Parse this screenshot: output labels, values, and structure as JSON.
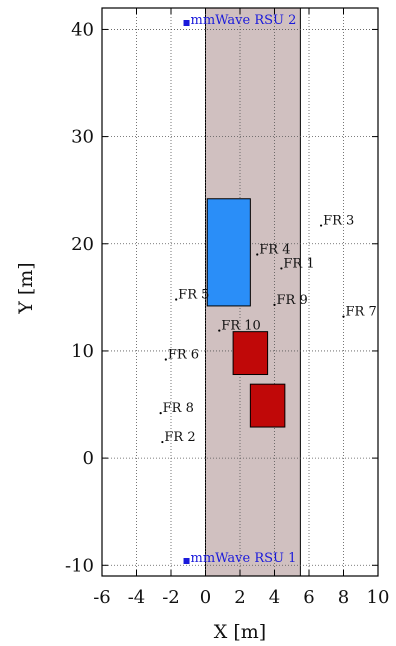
{
  "chart_data": {
    "type": "scatter",
    "title": "",
    "xlabel": "X [m]",
    "ylabel": "Y [m]",
    "xlim": [
      -6,
      10
    ],
    "ylim": [
      -11,
      42
    ],
    "xticks": [
      -6,
      -4,
      -2,
      0,
      2,
      4,
      6,
      8,
      10
    ],
    "xtick_labels": [
      "-6",
      "-4",
      "-2",
      "0",
      "2",
      "4",
      "6",
      "8",
      "10"
    ],
    "yticks": [
      -10,
      0,
      10,
      20,
      30,
      40
    ],
    "ytick_labels": [
      "-10",
      "0",
      "10",
      "20",
      "30",
      "40"
    ],
    "grid": true,
    "road": {
      "x": [
        0,
        5.5
      ],
      "y": [
        -11,
        42
      ],
      "color": "#d0c0c0"
    },
    "rsus": [
      {
        "label": "mmWave RSU 2",
        "x": -1.1,
        "y": 40.6
      },
      {
        "label": "mmWave RSU 1",
        "x": -1.1,
        "y": -9.6
      }
    ],
    "rsu_color": "#1a1adb",
    "points": [
      {
        "label": "FR 3",
        "x": 6.7,
        "y": 21.7
      },
      {
        "label": "FR 4",
        "x": 3.0,
        "y": 19.0
      },
      {
        "label": "FR 1",
        "x": 4.4,
        "y": 17.7
      },
      {
        "label": "FR 5",
        "x": -1.7,
        "y": 14.8
      },
      {
        "label": "FR 9",
        "x": 4.0,
        "y": 14.3
      },
      {
        "label": "FR 7",
        "x": 8.0,
        "y": 13.2
      },
      {
        "label": "FR 10",
        "x": 0.8,
        "y": 11.9
      },
      {
        "label": "FR 6",
        "x": -2.3,
        "y": 9.2
      },
      {
        "label": "FR 8",
        "x": -2.6,
        "y": 4.2
      },
      {
        "label": "FR 2",
        "x": -2.5,
        "y": 1.5
      }
    ],
    "vehicles": [
      {
        "x": [
          0.1,
          2.6
        ],
        "y": [
          14.2,
          24.2
        ],
        "color": "#2a8ef8"
      },
      {
        "x": [
          1.6,
          3.6
        ],
        "y": [
          7.8,
          11.8
        ],
        "color": "#c00808"
      },
      {
        "x": [
          2.6,
          4.6
        ],
        "y": [
          2.9,
          6.9
        ],
        "color": "#c00808"
      }
    ]
  }
}
